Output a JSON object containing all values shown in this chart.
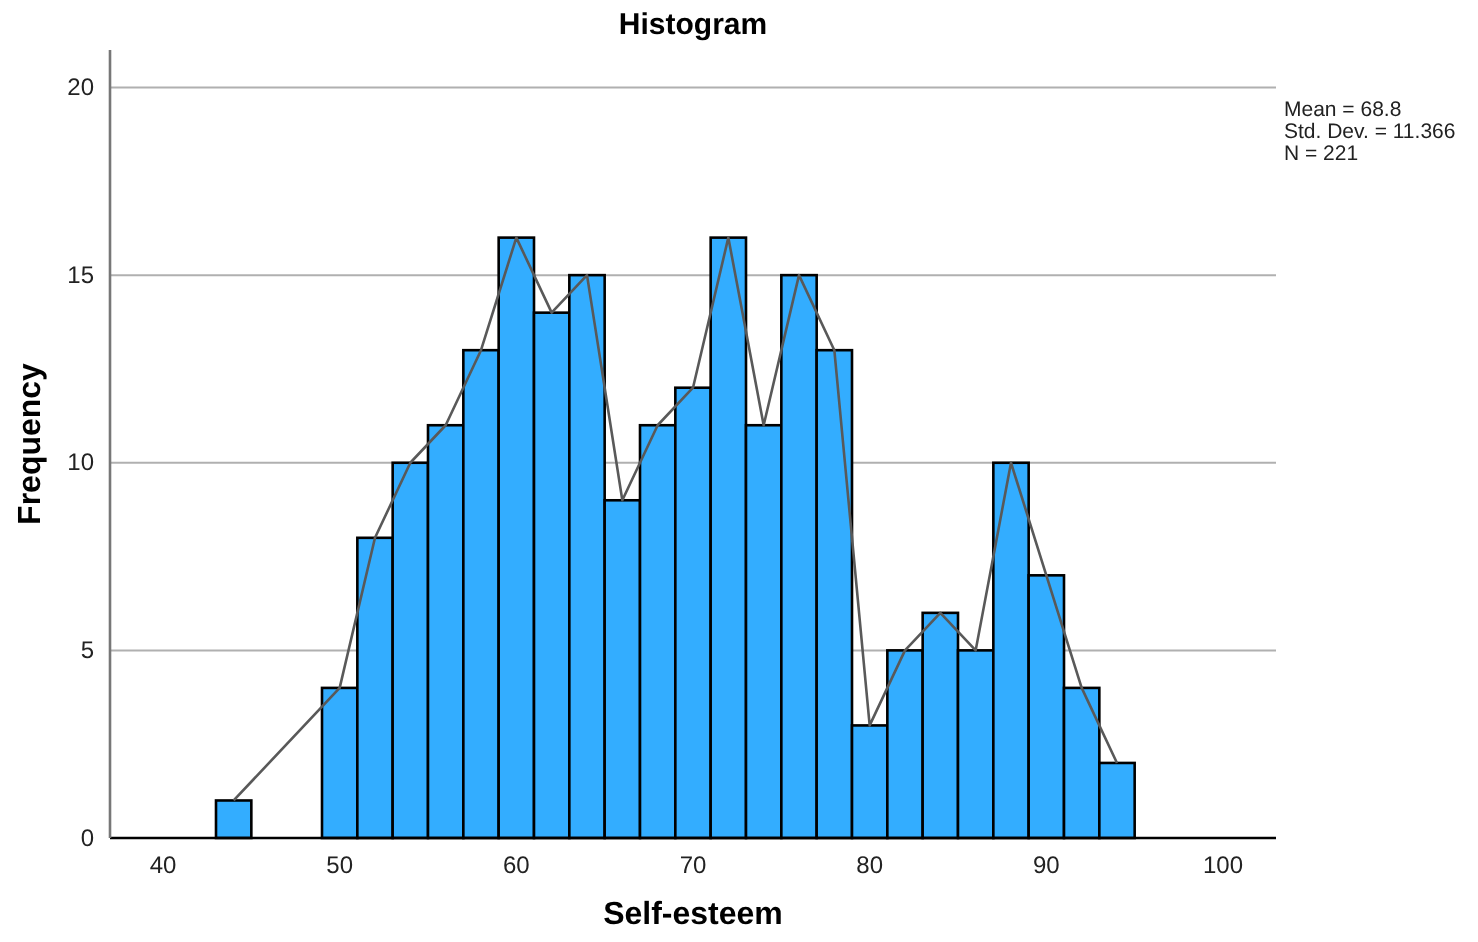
{
  "chart_data": {
    "type": "histogram",
    "title": "Histogram",
    "xlabel": "Self-esteem",
    "ylabel": "Frequency",
    "bins": [
      43,
      45,
      47,
      49,
      51,
      53,
      55,
      57,
      59,
      61,
      63,
      65,
      67,
      69,
      71,
      73,
      75,
      77,
      79,
      81,
      83,
      85,
      87,
      89,
      91,
      93,
      95
    ],
    "series": [
      {
        "color": "#33adff",
        "values": [
          1,
          0,
          0,
          4,
          8,
          10,
          11,
          13,
          16,
          14,
          15,
          9,
          11,
          12,
          16,
          11,
          15,
          13,
          3,
          5,
          6,
          5,
          10,
          7,
          4,
          2
        ]
      },
      {
        "type": "line",
        "color": "#595959",
        "x": [
          44,
          50,
          52,
          54,
          56,
          58,
          60,
          62,
          64,
          66,
          68,
          70,
          72,
          74,
          76,
          78,
          80,
          82,
          84,
          86,
          88,
          90,
          92,
          94
        ],
        "values": [
          1,
          4,
          8,
          10,
          11,
          13,
          16,
          14,
          15,
          9,
          11,
          12,
          16,
          11,
          15,
          13,
          3,
          5,
          6,
          5,
          10,
          7,
          4,
          2
        ]
      }
    ],
    "xlim": [
      37,
      103
    ],
    "xticks": [
      40,
      50,
      60,
      70,
      80,
      90,
      100
    ],
    "ylim": [
      0,
      21
    ],
    "yticks": [
      0,
      5,
      10,
      15,
      20
    ],
    "grid": "y",
    "marker": "none",
    "annotations": [
      "Mean = 68.8",
      "Std. Dev. = 11.366",
      "N = 221"
    ]
  }
}
